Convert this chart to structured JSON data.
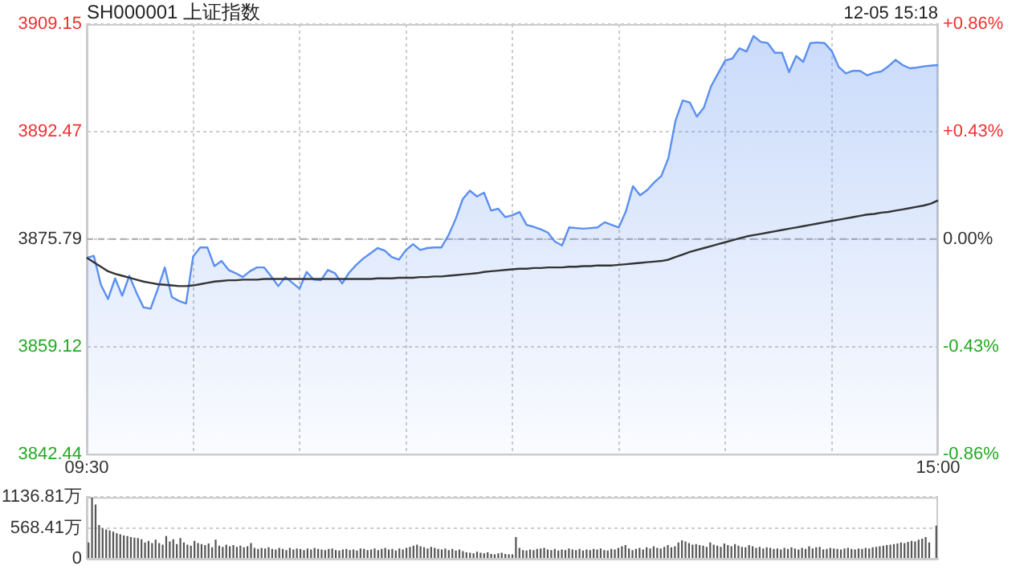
{
  "chart_data": [
    {
      "type": "line",
      "title": "SH000001 上证指数",
      "annotations": [
        "12-05 15:18"
      ],
      "categories": [
        "09:30",
        null,
        null,
        null,
        null,
        null,
        null,
        null,
        null,
        null,
        null,
        null,
        null,
        null,
        null,
        null,
        null,
        null,
        null,
        null,
        null,
        null,
        null,
        null,
        null,
        null,
        null,
        null,
        null,
        null,
        null,
        null,
        null,
        null,
        null,
        null,
        null,
        null,
        null,
        null,
        null,
        null,
        null,
        null,
        null,
        null,
        null,
        null,
        null,
        null,
        null,
        null,
        null,
        null,
        null,
        null,
        null,
        null,
        null,
        null,
        null,
        null,
        null,
        null,
        null,
        null,
        null,
        null,
        null,
        null,
        null,
        null,
        null,
        null,
        null,
        null,
        null,
        null,
        null,
        null,
        null,
        null,
        null,
        null,
        null,
        null,
        null,
        null,
        null,
        null,
        null,
        null,
        null,
        null,
        null,
        null,
        null,
        null,
        null,
        null,
        null,
        null,
        null,
        null,
        null,
        null,
        null,
        null,
        null,
        null,
        null,
        null,
        null,
        null,
        null,
        null,
        null,
        null,
        null,
        null,
        "15:00"
      ],
      "ylim": [
        3842.44,
        3909.15
      ],
      "yticks": [
        3842.44,
        3859.12,
        3875.79,
        3892.47,
        3909.15
      ],
      "y2lim": [
        -0.86,
        0.86
      ],
      "y2ticks": [
        {
          "value": -0.86,
          "label": "-0.86%"
        },
        {
          "value": -0.43,
          "label": "-0.43%"
        },
        {
          "value": 0,
          "label": "0.00%"
        },
        {
          "value": 0.43,
          "label": "+0.43%"
        },
        {
          "value": 0.86,
          "label": "+0.86%"
        }
      ],
      "grid": true,
      "legend": false,
      "marker": "none",
      "ref_lines": [
        {
          "axis": "y",
          "value": 3875.79,
          "color": "#aaaaaa",
          "line_style": "dashed"
        }
      ],
      "series": [
        {
          "type": "area",
          "color": "#5b8ff0",
          "values": [
            3872.9,
            3873.2,
            3868.7,
            3866.5,
            3869.7,
            3867.0,
            3870.1,
            3867.5,
            3865.2,
            3865.0,
            3868.0,
            3871.4,
            3866.8,
            3866.2,
            3865.8,
            3873.1,
            3874.5,
            3874.5,
            3871.6,
            3872.4,
            3871.0,
            3870.5,
            3869.9,
            3870.8,
            3871.4,
            3871.4,
            3870.0,
            3868.5,
            3869.9,
            3869.0,
            3868.1,
            3870.7,
            3869.5,
            3869.4,
            3871.0,
            3870.5,
            3868.9,
            3870.6,
            3871.8,
            3872.8,
            3873.6,
            3874.4,
            3874.0,
            3873.0,
            3872.6,
            3874.1,
            3875.0,
            3874.1,
            3874.4,
            3874.5,
            3874.5,
            3876.4,
            3878.9,
            3882.0,
            3883.3,
            3882.4,
            3883.0,
            3880.2,
            3880.5,
            3879.2,
            3879.5,
            3880.0,
            3878.0,
            3877.7,
            3877.3,
            3876.8,
            3875.4,
            3874.8,
            3877.6,
            3877.5,
            3877.4,
            3877.5,
            3877.6,
            3878.4,
            3878.0,
            3877.6,
            3880.1,
            3884.0,
            3882.6,
            3883.4,
            3884.6,
            3885.6,
            3888.4,
            3894.2,
            3897.3,
            3897.0,
            3894.8,
            3896.2,
            3899.5,
            3901.5,
            3903.5,
            3903.8,
            3905.4,
            3904.9,
            3907.3,
            3906.4,
            3906.2,
            3904.7,
            3904.7,
            3901.7,
            3904.2,
            3903.3,
            3906.2,
            3906.3,
            3906.2,
            3905.0,
            3902.5,
            3901.5,
            3901.9,
            3901.9,
            3901.2,
            3901.6,
            3901.8,
            3902.6,
            3903.6,
            3902.8,
            3902.3,
            3902.4,
            3902.6,
            3902.7,
            3902.8
          ]
        },
        {
          "color": "#333333",
          "values": [
            3872.9,
            3872.2,
            3871.5,
            3870.8,
            3870.4,
            3870.1,
            3869.8,
            3869.5,
            3869.2,
            3869.0,
            3868.8,
            3868.7,
            3868.6,
            3868.5,
            3868.5,
            3868.6,
            3868.8,
            3869.0,
            3869.2,
            3869.3,
            3869.4,
            3869.4,
            3869.5,
            3869.5,
            3869.5,
            3869.6,
            3869.6,
            3869.6,
            3869.6,
            3869.6,
            3869.6,
            3869.6,
            3869.6,
            3869.6,
            3869.6,
            3869.6,
            3869.6,
            3869.6,
            3869.6,
            3869.6,
            3869.6,
            3869.7,
            3869.7,
            3869.7,
            3869.8,
            3869.8,
            3869.8,
            3869.9,
            3869.9,
            3870.0,
            3870.0,
            3870.1,
            3870.2,
            3870.3,
            3870.4,
            3870.5,
            3870.7,
            3870.8,
            3870.9,
            3871.0,
            3871.1,
            3871.2,
            3871.2,
            3871.3,
            3871.3,
            3871.4,
            3871.4,
            3871.4,
            3871.5,
            3871.5,
            3871.6,
            3871.6,
            3871.7,
            3871.7,
            3871.7,
            3871.8,
            3871.9,
            3872.0,
            3872.1,
            3872.2,
            3872.3,
            3872.4,
            3872.6,
            3873.0,
            3873.4,
            3873.8,
            3874.1,
            3874.4,
            3874.7,
            3875.0,
            3875.3,
            3875.6,
            3875.9,
            3876.2,
            3876.4,
            3876.6,
            3876.8,
            3877.0,
            3877.2,
            3877.4,
            3877.6,
            3877.8,
            3878.0,
            3878.2,
            3878.4,
            3878.6,
            3878.8,
            3879.0,
            3879.2,
            3879.4,
            3879.6,
            3879.7,
            3879.9,
            3880.0,
            3880.2,
            3880.4,
            3880.6,
            3880.8,
            3881.0,
            3881.3,
            3881.8
          ]
        }
      ]
    },
    {
      "type": "bar",
      "ylim": [
        0,
        1136.81
      ],
      "yticks": [
        0,
        {
          "value": 568.41,
          "label": "568.41万"
        },
        {
          "value": 1136.81,
          "label": "1136.81万"
        }
      ],
      "grid": "y",
      "legend": false,
      "categories": [
        null,
        null,
        null,
        null,
        null,
        null,
        null,
        null,
        null,
        null,
        null,
        null,
        null,
        null,
        null,
        null,
        null,
        null,
        null,
        null,
        null,
        null,
        null,
        null,
        null,
        null,
        null,
        null,
        null,
        null,
        null,
        null,
        null,
        null,
        null,
        null,
        null,
        null,
        null,
        null,
        null,
        null,
        null,
        null,
        null,
        null,
        null,
        null,
        null,
        null,
        null,
        null,
        null,
        null,
        null,
        null,
        null,
        null,
        null,
        null,
        null,
        null,
        null,
        null,
        null,
        null,
        null,
        null,
        null,
        null,
        null,
        null,
        null,
        null,
        null,
        null,
        null,
        null,
        null,
        null,
        null,
        null,
        null,
        null,
        null,
        null,
        null,
        null,
        null,
        null,
        null,
        null,
        null,
        null,
        null,
        null,
        null,
        null,
        null,
        null,
        null,
        null,
        null,
        null,
        null,
        null,
        null,
        null,
        null,
        null,
        null,
        null,
        null,
        null,
        null,
        null,
        null,
        null,
        null,
        null,
        null,
        null,
        null,
        null,
        null,
        null,
        null,
        null,
        null,
        null,
        null,
        null,
        null,
        null,
        null,
        null,
        null,
        null,
        null,
        null,
        null,
        null,
        null,
        null,
        null,
        null,
        null,
        null,
        null,
        null,
        null,
        null,
        null,
        null,
        null,
        null,
        null,
        null,
        null,
        null,
        null,
        null,
        null,
        null,
        null,
        null,
        null,
        null,
        null,
        null,
        null,
        null,
        null,
        null,
        null,
        null,
        null,
        null,
        null,
        null,
        null,
        null,
        null,
        null,
        null,
        null,
        null,
        null,
        null,
        null,
        null,
        null,
        null,
        null,
        null,
        null,
        null,
        null,
        null,
        null,
        null,
        null,
        null,
        null,
        null,
        null,
        null,
        null,
        null,
        null,
        null,
        null,
        null,
        null,
        null,
        null,
        null,
        null,
        null,
        null,
        null,
        null,
        null,
        null,
        null,
        null,
        null,
        null,
        null,
        null,
        null,
        null,
        null,
        null,
        null,
        null,
        null,
        null,
        null,
        null,
        null
      ],
      "series": [
        {
          "color": "#555555",
          "values": [
            300,
            1130,
            1000,
            620,
            560,
            540,
            520,
            500,
            470,
            450,
            430,
            420,
            400,
            390,
            380,
            360,
            300,
            330,
            290,
            350,
            290,
            260,
            420,
            320,
            360,
            270,
            380,
            300,
            260,
            240,
            330,
            290,
            270,
            250,
            280,
            210,
            350,
            240,
            220,
            260,
            230,
            250,
            220,
            240,
            210,
            230,
            290,
            200,
            180,
            200,
            190,
            210,
            180,
            170,
            200,
            180,
            160,
            200,
            170,
            190,
            180,
            160,
            190,
            170,
            200,
            180,
            170,
            160,
            180,
            190,
            160,
            150,
            170,
            180,
            160,
            170,
            150,
            190,
            180,
            160,
            170,
            190,
            160,
            180,
            200,
            170,
            180,
            150,
            190,
            170,
            200,
            220,
            240,
            260,
            230,
            210,
            190,
            220,
            200,
            180,
            170,
            190,
            160,
            180,
            150,
            170,
            140,
            120,
            110,
            100,
            130,
            110,
            100,
            120,
            90,
            80,
            100,
            110,
            90,
            80,
            80,
            400,
            200,
            160,
            150,
            170,
            160,
            180,
            190,
            200,
            170,
            160,
            180,
            150,
            170,
            160,
            190,
            170,
            160,
            180,
            150,
            170,
            160,
            180,
            170,
            190,
            160,
            150,
            180,
            170,
            200,
            230,
            250,
            190,
            160,
            180,
            200,
            170,
            210,
            190,
            230,
            200,
            190,
            220,
            250,
            210,
            230,
            300,
            340,
            320,
            290,
            260,
            270,
            250,
            240,
            220,
            300,
            260,
            240,
            220,
            280,
            250,
            230,
            270,
            240,
            220,
            210,
            250,
            230,
            200,
            220,
            190,
            210,
            200,
            180,
            190,
            170,
            200,
            180,
            210,
            190,
            170,
            200,
            180,
            230,
            190,
            210,
            220,
            170,
            180,
            200,
            190,
            180,
            170,
            190,
            200,
            180,
            170,
            190,
            180,
            200,
            190,
            210,
            220,
            230,
            240,
            250,
            260,
            270,
            280,
            300,
            290,
            310,
            330,
            320,
            350,
            370,
            400,
            300,
            null,
            610
          ]
        }
      ]
    }
  ]
}
